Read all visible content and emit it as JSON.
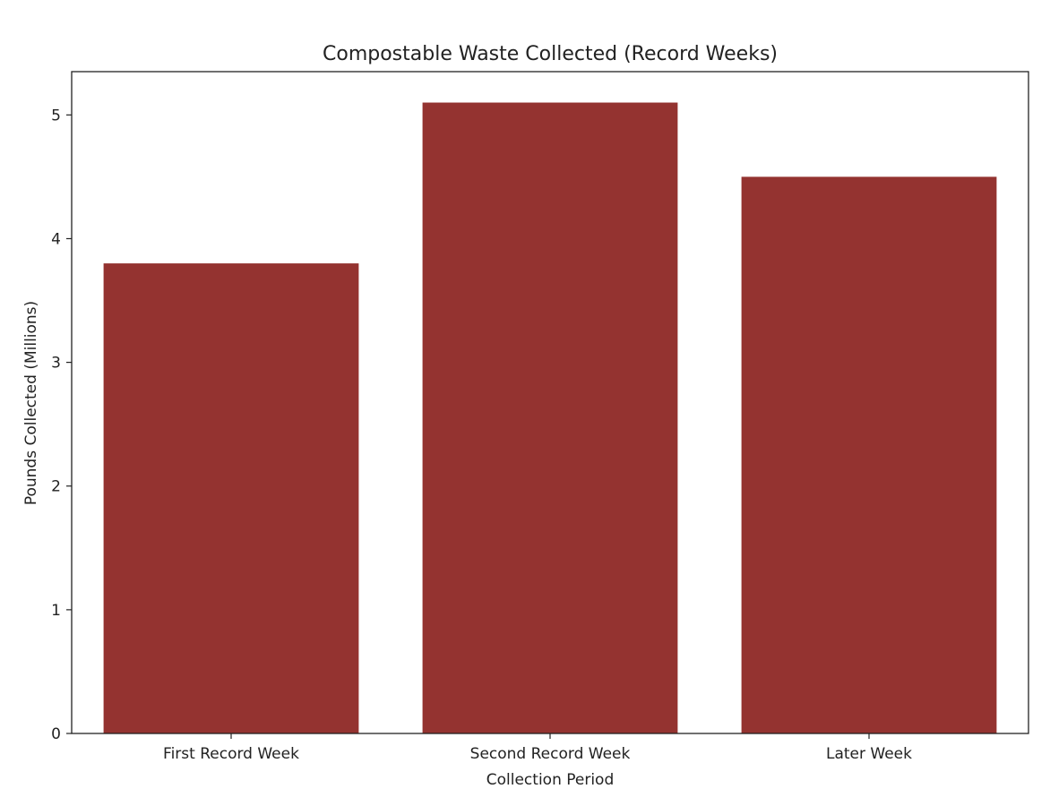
{
  "chart_data": {
    "type": "bar",
    "title": "Compostable Waste Collected (Record Weeks)",
    "xlabel": "Collection Period",
    "ylabel": "Pounds Collected (Millions)",
    "categories": [
      "First Record Week",
      "Second Record Week",
      "Later Week"
    ],
    "values": [
      3.8,
      5.1,
      4.5
    ],
    "ylim": [
      0,
      5.35
    ],
    "yticks": [
      "0",
      "1",
      "2",
      "3",
      "4",
      "5"
    ],
    "grid": false,
    "legend": "none",
    "bar_color": "#943330"
  }
}
